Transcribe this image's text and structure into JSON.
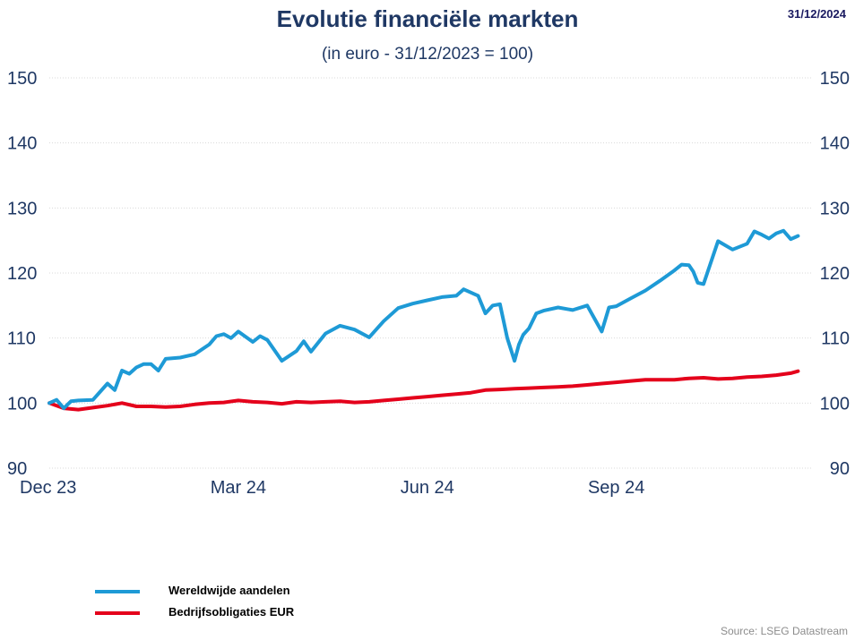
{
  "header": {
    "title": "Evolutie financiële markten",
    "subtitle": "(in euro - 31/12/2023 = 100)",
    "date": "31/12/2024"
  },
  "source": "Source: LSEG Datastream",
  "colors": {
    "equities": "#1e9ad6",
    "bonds": "#e4001b",
    "axis_text": "#1f3864",
    "grid": "#d9d9d9"
  },
  "chart_data": {
    "type": "line",
    "title": "Evolutie financiële markten",
    "subtitle": "(in euro - 31/12/2023 = 100)",
    "ylim": [
      90,
      150
    ],
    "yticks": [
      90,
      100,
      110,
      120,
      130,
      140,
      150
    ],
    "xlim": [
      0,
      52.4
    ],
    "xticks": [
      {
        "week": 0,
        "label": "Dec 23"
      },
      {
        "week": 13,
        "label": "Mar 24"
      },
      {
        "week": 26,
        "label": "Jun 24"
      },
      {
        "week": 39,
        "label": "Sep 24"
      }
    ],
    "y_axis_both_sides": true,
    "grid": "horizontal dotted",
    "legend_position": "bottom-left",
    "series": [
      {
        "name": "Wereldwijde aandelen",
        "color": "#1e9ad6",
        "x": [
          0,
          0.5,
          1,
          1.5,
          2,
          3,
          4,
          4.5,
          5,
          5.5,
          6,
          6.5,
          7,
          7.5,
          8,
          9,
          10,
          11,
          11.5,
          12,
          12.5,
          13,
          14,
          14.5,
          15,
          16,
          17,
          17.5,
          18,
          19,
          20,
          21,
          22,
          23,
          24,
          25,
          26,
          27,
          28,
          28.5,
          29,
          29.5,
          30,
          30.5,
          31,
          31.5,
          32,
          32.3,
          32.6,
          33,
          33.5,
          34,
          35,
          36,
          37,
          38,
          38.5,
          39,
          40,
          41,
          42,
          43,
          43.5,
          44,
          44.3,
          44.6,
          45,
          46,
          47,
          48,
          48.5,
          49,
          49.5,
          50,
          50.5,
          51,
          51.5
        ],
        "y": [
          100,
          100.5,
          99.2,
          100.3,
          100.4,
          100.5,
          103,
          102,
          105,
          104.5,
          105.5,
          106,
          106,
          105,
          106.8,
          107,
          107.5,
          109,
          110.3,
          110.6,
          110,
          111,
          109.4,
          110.3,
          109.7,
          106.5,
          108,
          109.5,
          107.9,
          110.7,
          111.9,
          111.3,
          110.1,
          112.6,
          114.6,
          115.3,
          115.8,
          116.3,
          116.5,
          117.5,
          117,
          116.5,
          113.8,
          115,
          115.2,
          110,
          106.5,
          109,
          110.5,
          111.5,
          113.8,
          114.2,
          114.7,
          114.3,
          115,
          111,
          114.7,
          114.9,
          116.1,
          117.3,
          118.8,
          120.4,
          121.3,
          121.2,
          120.2,
          118.5,
          118.3,
          124.9,
          123.6,
          124.5,
          126.4,
          125.9,
          125.3,
          126.1,
          126.5,
          125.2,
          125.7
        ]
      },
      {
        "name": "Bedrijfsobligaties EUR",
        "color": "#e4001b",
        "x": [
          0,
          1,
          2,
          3,
          4,
          5,
          6,
          7,
          8,
          9,
          10,
          11,
          12,
          13,
          14,
          15,
          16,
          17,
          18,
          19,
          20,
          21,
          22,
          23,
          24,
          25,
          26,
          27,
          28,
          29,
          30,
          31,
          32,
          33,
          34,
          35,
          36,
          37,
          38,
          39,
          40,
          41,
          42,
          43,
          44,
          45,
          46,
          47,
          48,
          49,
          50,
          51,
          51.5
        ],
        "y": [
          100,
          99.2,
          99,
          99.3,
          99.6,
          100,
          99.5,
          99.5,
          99.4,
          99.5,
          99.8,
          100,
          100.1,
          100.4,
          100.2,
          100.1,
          99.9,
          100.2,
          100.1,
          100.2,
          100.3,
          100.1,
          100.2,
          100.4,
          100.6,
          100.8,
          101,
          101.2,
          101.4,
          101.6,
          102,
          102.1,
          102.2,
          102.3,
          102.4,
          102.5,
          102.6,
          102.8,
          103,
          103.2,
          103.4,
          103.6,
          103.6,
          103.6,
          103.8,
          103.9,
          103.7,
          103.8,
          104,
          104.1,
          104.3,
          104.6,
          104.9
        ]
      }
    ]
  }
}
